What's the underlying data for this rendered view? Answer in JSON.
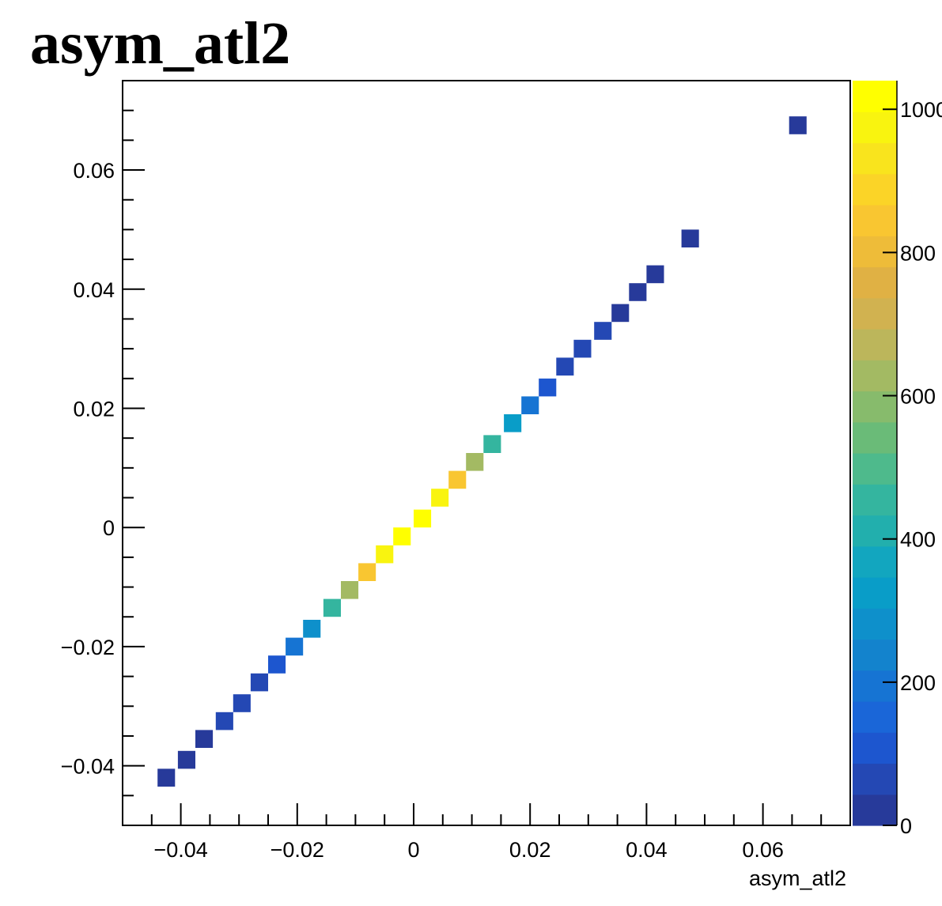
{
  "chart_data": {
    "type": "heatmap",
    "title": "asym_atl2",
    "xlabel": "asym_atl2",
    "ylabel": "",
    "xlim": [
      -0.05,
      0.075
    ],
    "ylim": [
      -0.05,
      0.075
    ],
    "bin_width": 0.003,
    "x_ticks": [
      {
        "value": -0.04,
        "label": "−0.04"
      },
      {
        "value": -0.02,
        "label": "−0.02"
      },
      {
        "value": 0,
        "label": "0"
      },
      {
        "value": 0.02,
        "label": "0.02"
      },
      {
        "value": 0.04,
        "label": "0.04"
      },
      {
        "value": 0.06,
        "label": "0.06"
      }
    ],
    "y_ticks": [
      {
        "value": -0.04,
        "label": "−0.04"
      },
      {
        "value": -0.02,
        "label": "−0.02"
      },
      {
        "value": 0,
        "label": "0"
      },
      {
        "value": 0.02,
        "label": "0.02"
      },
      {
        "value": 0.04,
        "label": "0.04"
      },
      {
        "value": 0.06,
        "label": "0.06"
      }
    ],
    "cells": [
      {
        "x": -0.0425,
        "y": -0.042,
        "z": 20
      },
      {
        "x": -0.039,
        "y": -0.039,
        "z": 30
      },
      {
        "x": -0.036,
        "y": -0.0355,
        "z": 40
      },
      {
        "x": -0.0325,
        "y": -0.0325,
        "z": 50
      },
      {
        "x": -0.0295,
        "y": -0.0295,
        "z": 60
      },
      {
        "x": -0.0265,
        "y": -0.026,
        "z": 80
      },
      {
        "x": -0.0235,
        "y": -0.023,
        "z": 110
      },
      {
        "x": -0.0205,
        "y": -0.02,
        "z": 180
      },
      {
        "x": -0.0175,
        "y": -0.017,
        "z": 290
      },
      {
        "x": -0.014,
        "y": -0.0135,
        "z": 450
      },
      {
        "x": -0.011,
        "y": -0.0105,
        "z": 620
      },
      {
        "x": -0.008,
        "y": -0.0075,
        "z": 840
      },
      {
        "x": -0.005,
        "y": -0.0045,
        "z": 960
      },
      {
        "x": -0.002,
        "y": -0.0015,
        "z": 1020
      },
      {
        "x": 0.0015,
        "y": 0.0015,
        "z": 1025
      },
      {
        "x": 0.0045,
        "y": 0.005,
        "z": 960
      },
      {
        "x": 0.0075,
        "y": 0.008,
        "z": 830
      },
      {
        "x": 0.0105,
        "y": 0.011,
        "z": 640
      },
      {
        "x": 0.0135,
        "y": 0.014,
        "z": 460
      },
      {
        "x": 0.017,
        "y": 0.0175,
        "z": 310
      },
      {
        "x": 0.02,
        "y": 0.0205,
        "z": 190
      },
      {
        "x": 0.023,
        "y": 0.0235,
        "z": 110
      },
      {
        "x": 0.026,
        "y": 0.027,
        "z": 80
      },
      {
        "x": 0.029,
        "y": 0.03,
        "z": 60
      },
      {
        "x": 0.0325,
        "y": 0.033,
        "z": 50
      },
      {
        "x": 0.0355,
        "y": 0.036,
        "z": 40
      },
      {
        "x": 0.0385,
        "y": 0.0395,
        "z": 30
      },
      {
        "x": 0.0415,
        "y": 0.0425,
        "z": 25
      },
      {
        "x": 0.0475,
        "y": 0.0485,
        "z": 10
      },
      {
        "x": 0.066,
        "y": 0.0675,
        "z": 5
      }
    ],
    "colorbar": {
      "zlim": [
        0,
        1040
      ],
      "ticks": [
        {
          "value": 0,
          "label": "0"
        },
        {
          "value": 200,
          "label": "200"
        },
        {
          "value": 400,
          "label": "400"
        },
        {
          "value": 600,
          "label": "600"
        },
        {
          "value": 800,
          "label": "800"
        },
        {
          "value": 1000,
          "label": "1000"
        }
      ],
      "palette": [
        "#273a9a",
        "#2448b4",
        "#1d56cf",
        "#1a66d8",
        "#1674d3",
        "#1383cd",
        "#0e90cb",
        "#099dc8",
        "#12a6bf",
        "#22afad",
        "#34b59f",
        "#4eba8c",
        "#6abb78",
        "#87bb6c",
        "#a3ba63",
        "#bcb65b",
        "#d1b250",
        "#e0b144",
        "#eebc39",
        "#f9c631",
        "#fbd427",
        "#f9e41d",
        "#f9f40f",
        "#ffff00"
      ]
    },
    "grid": false,
    "legend": "none"
  }
}
